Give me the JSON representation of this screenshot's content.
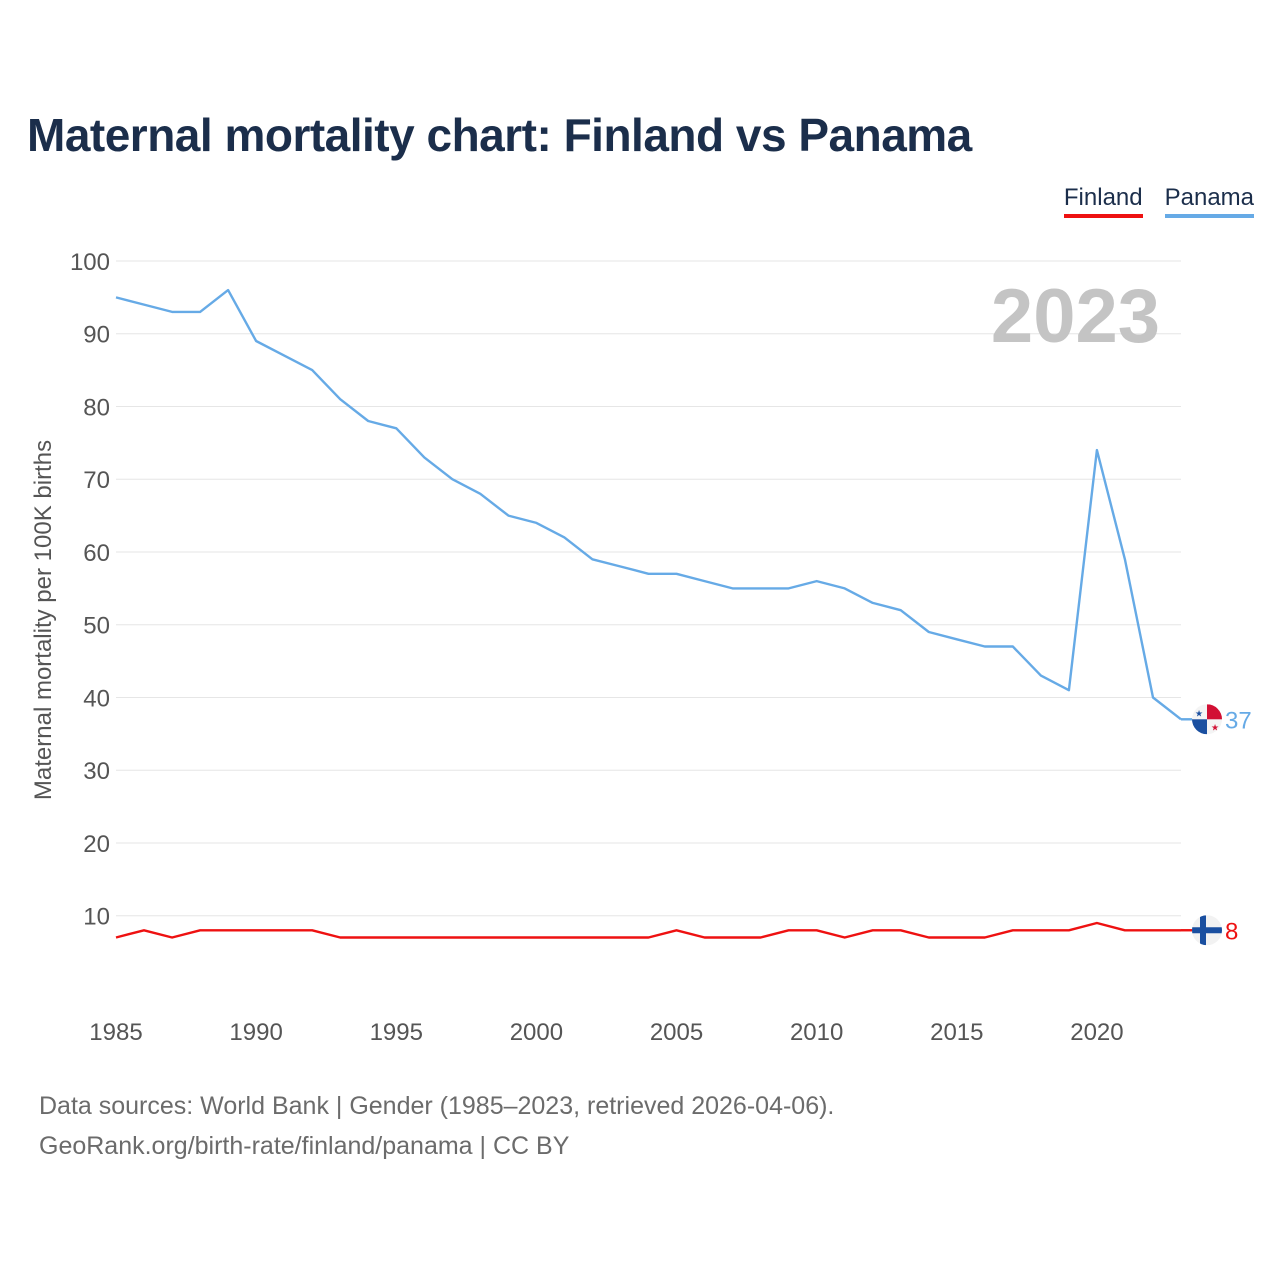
{
  "title": "Maternal mortality chart: Finland vs Panama",
  "legend": {
    "finland": "Finland",
    "panama": "Panama"
  },
  "footer": {
    "line1": "Data sources: World Bank | Gender (1985–2023, retrieved 2026-04-06).",
    "line2": "GeoRank.org/birth-rate/finland/panama | CC BY"
  },
  "colors": {
    "finland": "#ee1111",
    "panama": "#66aae6",
    "title": "#1b2e4b",
    "grid": "#e6e6e6"
  },
  "chart_data": {
    "type": "line",
    "title": "Maternal mortality chart: Finland vs Panama",
    "ylabel": "Maternal mortality per 100K births",
    "xlabel": "",
    "year_watermark": "2023",
    "x": [
      1985,
      1986,
      1987,
      1988,
      1989,
      1990,
      1991,
      1992,
      1993,
      1994,
      1995,
      1996,
      1997,
      1998,
      1999,
      2000,
      2001,
      2002,
      2003,
      2004,
      2005,
      2006,
      2007,
      2008,
      2009,
      2010,
      2011,
      2012,
      2013,
      2014,
      2015,
      2016,
      2017,
      2018,
      2019,
      2020,
      2021,
      2022,
      2023
    ],
    "xticks": [
      "1985",
      "1990",
      "1995",
      "2000",
      "2005",
      "2010",
      "2015",
      "2020"
    ],
    "yticks": [
      "10",
      "20",
      "30",
      "40",
      "50",
      "60",
      "70",
      "80",
      "90",
      "100"
    ],
    "ylim": [
      -2,
      100
    ],
    "xlim": [
      1985,
      2023
    ],
    "series": [
      {
        "name": "Finland",
        "color": "#ee1111",
        "end_label": "8",
        "values": [
          7,
          8,
          7,
          8,
          8,
          8,
          8,
          8,
          7,
          7,
          7,
          7,
          7,
          7,
          7,
          7,
          7,
          7,
          7,
          7,
          8,
          7,
          7,
          7,
          8,
          8,
          7,
          8,
          8,
          7,
          7,
          7,
          8,
          8,
          8,
          9,
          8,
          8,
          8
        ]
      },
      {
        "name": "Panama",
        "color": "#66aae6",
        "end_label": "37",
        "values": [
          95,
          94,
          93,
          93,
          96,
          89,
          87,
          85,
          81,
          78,
          77,
          73,
          70,
          68,
          65,
          64,
          62,
          59,
          58,
          57,
          57,
          56,
          55,
          55,
          55,
          56,
          55,
          53,
          52,
          49,
          48,
          47,
          47,
          43,
          41,
          74,
          59,
          40,
          37
        ]
      }
    ]
  }
}
